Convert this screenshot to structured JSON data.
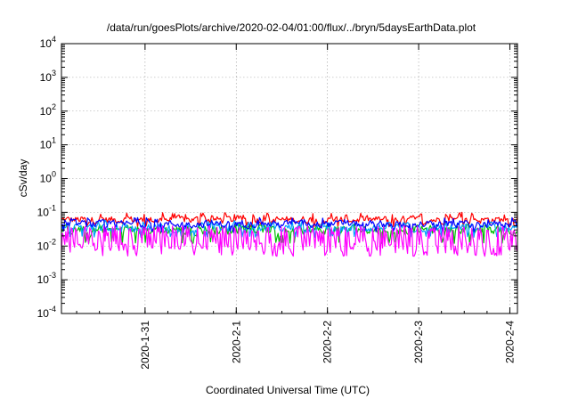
{
  "chart_data": {
    "type": "line",
    "title": "/data/run/goesPlots/archive/2020-02-04/01:00/flux/../bryn/5daysEarthData.plot",
    "xlabel": "Coordinated Universal Time (UTC)",
    "ylabel": "cSv/day",
    "yscale": "log",
    "ylim": [
      0.0001,
      10000
    ],
    "xlim": [
      "2020-01-30T02:00",
      "2020-02-04T02:00"
    ],
    "x_ticks": [
      {
        "label": "2020-1-31",
        "date": "2020-01-31T00:00"
      },
      {
        "label": "2020-2-1",
        "date": "2020-02-01T00:00"
      },
      {
        "label": "2020-2-2",
        "date": "2020-02-02T00:00"
      },
      {
        "label": "2020-2-3",
        "date": "2020-02-03T00:00"
      },
      {
        "label": "2020-2-4",
        "date": "2020-02-04T00:00"
      }
    ],
    "y_ticks": [
      {
        "base": "10",
        "exp": "-4",
        "value": 0.0001
      },
      {
        "base": "10",
        "exp": "-3",
        "value": 0.001
      },
      {
        "base": "10",
        "exp": "-2",
        "value": 0.01
      },
      {
        "base": "10",
        "exp": "-1",
        "value": 0.1
      },
      {
        "base": "10",
        "exp": "0",
        "value": 1
      },
      {
        "base": "10",
        "exp": "1",
        "value": 10
      },
      {
        "base": "10",
        "exp": "2",
        "value": 100
      },
      {
        "base": "10",
        "exp": "3",
        "value": 1000
      },
      {
        "base": "10",
        "exp": "4",
        "value": 10000
      }
    ],
    "grid": true,
    "series": [
      {
        "color": "#ff0000",
        "typical": 0.06,
        "low": 0.035,
        "high": 0.1
      },
      {
        "color": "#00c000",
        "typical": 0.03,
        "low": 0.012,
        "high": 0.045
      },
      {
        "color": "#00a0ff",
        "typical": 0.035,
        "low": 0.018,
        "high": 0.06
      },
      {
        "color": "#0000ff",
        "typical": 0.045,
        "low": 0.025,
        "high": 0.07
      },
      {
        "color": "#ff00ff",
        "typical": 0.008,
        "low": 0.005,
        "high": 0.04
      }
    ]
  }
}
